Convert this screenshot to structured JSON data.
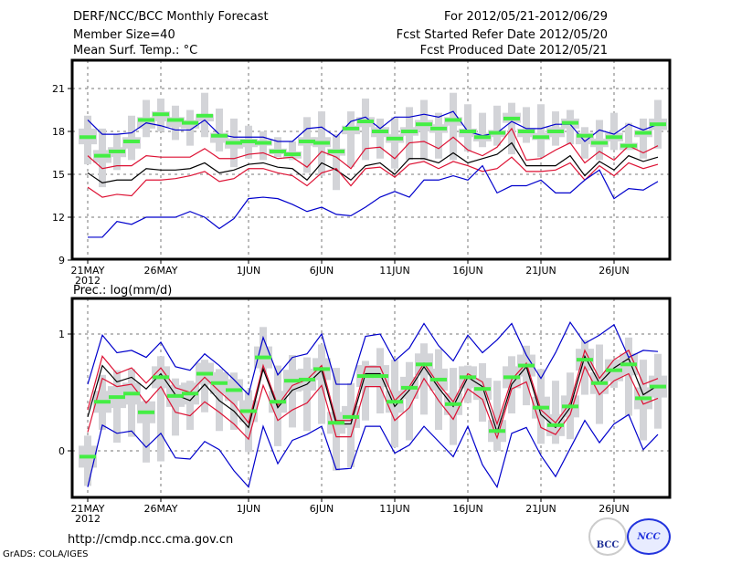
{
  "header": {
    "title": "DERF/NCC/BCC Monthly Forecast",
    "member_size": "Member Size=40",
    "panel1_label": "Mean Surf. Temp.: °C",
    "period": "For 2012/05/21-2012/06/29",
    "refer_date": "Fcst Started Refer Date 2012/05/20",
    "produced_date": "Fcst Produced Date 2012/05/21"
  },
  "footer": {
    "url": "http://cmdp.ncc.cma.gov.cn",
    "credit": "GrADS: COLA/IGES",
    "logo_left": "BCC",
    "logo_right": "NCC"
  },
  "colors": {
    "envelope": "#0000cc",
    "spread": "#dd1133",
    "mean": "#000000",
    "marker": "#44ee44",
    "box": "#d3d4d8"
  },
  "chart_data": [
    {
      "type": "line",
      "title": "Mean Surf. Temp.: °C",
      "xlabel": "",
      "ylabel": "",
      "ylim": [
        9,
        23
      ],
      "yticks": [
        9,
        12,
        15,
        18,
        21
      ],
      "ytick_labels": [
        "9",
        "12",
        "15",
        "18",
        "21"
      ],
      "xticks": [
        0,
        5,
        11,
        16,
        21,
        26,
        31,
        36
      ],
      "xtick_labels": [
        "21MAY",
        "26MAY",
        "1JUN",
        "6JUN",
        "11JUN",
        "16JUN",
        "21JUN",
        "26JUN"
      ],
      "xtick_sublabel": "2012",
      "n_days": 40,
      "grid": true,
      "series": [
        {
          "name": "max",
          "values": [
            18.8,
            17.8,
            17.8,
            17.9,
            18.6,
            18.4,
            18.1,
            18.1,
            18.8,
            17.8,
            17.6,
            17.6,
            17.6,
            17.3,
            17.3,
            18.2,
            18.3,
            17.6,
            18.7,
            19.0,
            18.2,
            19.0,
            19.0,
            19.2,
            19.0,
            19.4,
            18.0,
            17.7,
            17.9,
            18.7,
            18.2,
            18.2,
            18.5,
            18.5,
            17.3,
            18.1,
            17.8,
            18.5,
            18.1,
            18.5
          ]
        },
        {
          "name": "upper",
          "values": [
            16.3,
            15.4,
            15.6,
            15.6,
            16.3,
            16.2,
            16.2,
            16.2,
            16.8,
            16.1,
            16.1,
            16.4,
            16.5,
            16.1,
            16.2,
            15.5,
            16.6,
            16.2,
            15.4,
            16.8,
            16.9,
            16.1,
            17.2,
            17.3,
            16.8,
            17.6,
            16.7,
            16.3,
            16.9,
            18.2,
            16.0,
            16.1,
            16.7,
            17.2,
            15.8,
            16.6,
            16.0,
            17.0,
            16.5,
            17.0
          ]
        },
        {
          "name": "mean",
          "values": [
            15.1,
            14.4,
            14.6,
            14.6,
            15.4,
            15.3,
            15.3,
            15.4,
            15.8,
            15.1,
            15.3,
            15.7,
            15.8,
            15.5,
            15.4,
            14.6,
            15.8,
            15.3,
            14.6,
            15.6,
            15.8,
            15.0,
            16.1,
            16.1,
            15.8,
            16.5,
            15.8,
            16.1,
            16.4,
            17.2,
            15.6,
            15.6,
            15.6,
            16.3,
            14.9,
            15.9,
            15.3,
            16.3,
            15.9,
            16.2
          ]
        },
        {
          "name": "lower",
          "values": [
            14.1,
            13.4,
            13.6,
            13.5,
            14.6,
            14.6,
            14.7,
            14.9,
            15.2,
            14.5,
            14.7,
            15.4,
            15.4,
            15.1,
            14.9,
            14.2,
            15.1,
            15.4,
            14.2,
            15.4,
            15.5,
            14.8,
            15.7,
            15.9,
            15.4,
            15.9,
            15.6,
            15.2,
            15.4,
            16.2,
            15.2,
            15.2,
            15.3,
            15.8,
            14.6,
            15.6,
            14.9,
            15.8,
            15.4,
            15.7
          ]
        },
        {
          "name": "min",
          "values": [
            10.6,
            10.6,
            11.7,
            11.5,
            12.0,
            12.0,
            12.0,
            12.4,
            12.0,
            11.2,
            11.9,
            13.3,
            13.4,
            13.3,
            12.9,
            12.4,
            12.7,
            12.2,
            12.1,
            12.7,
            13.4,
            13.8,
            13.4,
            14.6,
            14.6,
            14.9,
            14.6,
            15.6,
            13.7,
            14.2,
            14.2,
            14.6,
            13.7,
            13.7,
            14.6,
            15.3,
            13.3,
            14.0,
            13.9,
            14.5
          ]
        },
        {
          "name": "ensemble_median_marker",
          "values": [
            17.6,
            16.3,
            16.6,
            17.3,
            18.8,
            19.2,
            18.8,
            18.6,
            19.1,
            17.7,
            17.2,
            17.3,
            17.2,
            16.6,
            16.4,
            17.3,
            17.2,
            16.6,
            18.2,
            18.7,
            18.0,
            17.5,
            18.0,
            18.5,
            18.2,
            18.8,
            18.0,
            17.6,
            17.9,
            18.9,
            18.0,
            17.6,
            18.0,
            18.6,
            17.7,
            17.2,
            17.6,
            17.0,
            17.9,
            18.5
          ]
        }
      ],
      "box_outer": [
        [
          15.7,
          19.1
        ],
        [
          14.1,
          18.2
        ],
        [
          15.3,
          17.8
        ],
        [
          16.0,
          19.1
        ],
        [
          17.6,
          20.2
        ],
        [
          18.0,
          20.3
        ],
        [
          17.4,
          19.8
        ],
        [
          17.0,
          19.5
        ],
        [
          17.6,
          20.7
        ],
        [
          16.6,
          19.6
        ],
        [
          15.5,
          18.9
        ],
        [
          16.1,
          18.4
        ],
        [
          16.0,
          18.0
        ],
        [
          16.2,
          17.6
        ],
        [
          16.0,
          17.3
        ],
        [
          15.1,
          19.0
        ],
        [
          14.9,
          19.4
        ],
        [
          13.9,
          17.8
        ],
        [
          15.5,
          19.4
        ],
        [
          16.0,
          20.3
        ],
        [
          16.1,
          18.9
        ],
        [
          15.4,
          19.0
        ],
        [
          16.0,
          19.7
        ],
        [
          16.0,
          20.2
        ],
        [
          16.1,
          19.3
        ],
        [
          16.0,
          20.7
        ],
        [
          16.6,
          19.9
        ],
        [
          16.9,
          19.3
        ],
        [
          17.0,
          19.8
        ],
        [
          16.4,
          20.0
        ],
        [
          17.2,
          19.7
        ],
        [
          16.2,
          19.9
        ],
        [
          17.0,
          19.4
        ],
        [
          17.1,
          19.5
        ],
        [
          16.1,
          18.3
        ],
        [
          16.0,
          18.8
        ],
        [
          16.7,
          19.3
        ],
        [
          17.0,
          18.6
        ],
        [
          16.1,
          18.9
        ],
        [
          16.8,
          20.2
        ]
      ],
      "box_inner": [
        [
          17.1,
          18.2
        ],
        [
          15.8,
          16.7
        ],
        [
          16.2,
          16.9
        ],
        [
          16.8,
          17.6
        ],
        [
          18.2,
          19.0
        ],
        [
          18.7,
          19.4
        ],
        [
          18.3,
          19.0
        ],
        [
          18.2,
          18.8
        ],
        [
          18.7,
          19.2
        ],
        [
          17.2,
          17.9
        ],
        [
          16.8,
          17.5
        ],
        [
          16.9,
          17.5
        ],
        [
          17.0,
          17.4
        ],
        [
          16.4,
          16.8
        ],
        [
          16.1,
          16.6
        ],
        [
          17.0,
          17.6
        ],
        [
          16.9,
          17.6
        ],
        [
          16.3,
          16.8
        ],
        [
          17.8,
          18.4
        ],
        [
          18.3,
          19.0
        ],
        [
          17.6,
          18.3
        ],
        [
          17.2,
          17.8
        ],
        [
          17.7,
          18.3
        ],
        [
          18.0,
          18.8
        ],
        [
          17.9,
          18.5
        ],
        [
          18.4,
          19.0
        ],
        [
          17.6,
          18.2
        ],
        [
          17.3,
          17.9
        ],
        [
          17.6,
          18.1
        ],
        [
          18.6,
          19.3
        ],
        [
          17.6,
          18.2
        ],
        [
          17.4,
          17.9
        ],
        [
          17.6,
          18.3
        ],
        [
          18.2,
          18.9
        ],
        [
          17.1,
          17.9
        ],
        [
          16.9,
          17.5
        ],
        [
          17.3,
          17.9
        ],
        [
          16.7,
          17.2
        ],
        [
          17.6,
          18.1
        ],
        [
          18.1,
          18.9
        ]
      ]
    },
    {
      "type": "line",
      "title": "Prec.: log(mm/d)",
      "xlabel": "",
      "ylabel": "",
      "ylim": [
        -0.4,
        1.3
      ],
      "yticks": [
        0,
        1
      ],
      "ytick_labels": [
        "0",
        "1"
      ],
      "xticks": [
        0,
        5,
        11,
        16,
        21,
        26,
        31,
        36
      ],
      "xtick_labels": [
        "21MAY",
        "26MAY",
        "1JUN",
        "6JUN",
        "11JUN",
        "16JUN",
        "21JUN",
        "26JUN"
      ],
      "xtick_sublabel": "2012",
      "n_days": 40,
      "grid": true,
      "series": [
        {
          "name": "max",
          "values": [
            0.57,
            0.99,
            0.84,
            0.86,
            0.8,
            0.93,
            0.72,
            0.69,
            0.83,
            0.73,
            0.61,
            0.48,
            0.97,
            0.65,
            0.8,
            0.83,
            1.0,
            0.57,
            0.57,
            0.98,
            1.0,
            0.77,
            0.88,
            1.09,
            0.9,
            0.77,
            0.99,
            0.84,
            0.95,
            1.09,
            0.82,
            0.62,
            0.84,
            1.1,
            0.92,
            0.99,
            1.08,
            0.8,
            0.86,
            0.85
          ]
        },
        {
          "name": "upper",
          "values": [
            0.35,
            0.81,
            0.66,
            0.71,
            0.58,
            0.71,
            0.54,
            0.5,
            0.63,
            0.51,
            0.4,
            0.24,
            0.73,
            0.39,
            0.56,
            0.61,
            0.73,
            0.26,
            0.26,
            0.72,
            0.72,
            0.43,
            0.55,
            0.75,
            0.57,
            0.42,
            0.66,
            0.59,
            0.23,
            0.61,
            0.75,
            0.35,
            0.24,
            0.41,
            0.86,
            0.62,
            0.78,
            0.86,
            0.57,
            0.62
          ]
        },
        {
          "name": "mean",
          "values": [
            0.29,
            0.73,
            0.59,
            0.63,
            0.53,
            0.66,
            0.48,
            0.43,
            0.57,
            0.43,
            0.34,
            0.2,
            0.7,
            0.37,
            0.52,
            0.57,
            0.69,
            0.23,
            0.23,
            0.66,
            0.66,
            0.38,
            0.52,
            0.72,
            0.54,
            0.38,
            0.63,
            0.55,
            0.16,
            0.57,
            0.72,
            0.31,
            0.2,
            0.37,
            0.81,
            0.58,
            0.71,
            0.79,
            0.48,
            0.56
          ]
        },
        {
          "name": "lower",
          "values": [
            0.16,
            0.62,
            0.55,
            0.57,
            0.41,
            0.55,
            0.33,
            0.3,
            0.42,
            0.33,
            0.23,
            0.1,
            0.56,
            0.26,
            0.35,
            0.41,
            0.56,
            0.12,
            0.12,
            0.55,
            0.55,
            0.26,
            0.37,
            0.62,
            0.43,
            0.27,
            0.53,
            0.44,
            0.11,
            0.53,
            0.59,
            0.2,
            0.14,
            0.31,
            0.72,
            0.48,
            0.6,
            0.66,
            0.4,
            0.45
          ]
        },
        {
          "name": "min",
          "values": [
            -0.31,
            0.22,
            0.15,
            0.17,
            0.03,
            0.15,
            -0.06,
            -0.07,
            0.08,
            0.01,
            -0.17,
            -0.31,
            0.21,
            -0.11,
            0.09,
            0.14,
            0.21,
            -0.16,
            -0.15,
            0.21,
            0.21,
            -0.02,
            0.05,
            0.21,
            0.08,
            -0.05,
            0.21,
            -0.12,
            -0.31,
            0.15,
            0.2,
            -0.04,
            -0.22,
            0.02,
            0.26,
            0.07,
            0.23,
            0.31,
            0.01,
            0.14
          ]
        },
        {
          "name": "ensemble_median_marker",
          "values": [
            -0.05,
            0.42,
            0.46,
            0.49,
            0.33,
            0.63,
            0.47,
            0.49,
            0.66,
            0.58,
            0.52,
            0.34,
            0.8,
            0.42,
            0.6,
            0.61,
            0.7,
            0.24,
            0.29,
            0.64,
            0.64,
            0.42,
            0.54,
            0.74,
            0.61,
            0.4,
            0.63,
            0.53,
            0.17,
            0.63,
            0.73,
            0.37,
            0.22,
            0.38,
            0.78,
            0.58,
            0.69,
            0.74,
            0.45,
            0.55
          ]
        }
      ],
      "box_outer": [
        [
          -0.3,
          0.13
        ],
        [
          0.18,
          0.65
        ],
        [
          0.07,
          0.69
        ],
        [
          0.12,
          0.7
        ],
        [
          -0.1,
          0.43
        ],
        [
          -0.09,
          0.81
        ],
        [
          0.13,
          0.62
        ],
        [
          0.18,
          0.6
        ],
        [
          0.33,
          0.78
        ],
        [
          0.17,
          0.7
        ],
        [
          0.18,
          0.67
        ],
        [
          -0.01,
          0.52
        ],
        [
          0.67,
          1.06
        ],
        [
          0.04,
          0.73
        ],
        [
          0.2,
          0.82
        ],
        [
          0.17,
          0.8
        ],
        [
          0.23,
          0.91
        ],
        [
          -0.17,
          0.71
        ],
        [
          -0.14,
          0.58
        ],
        [
          0.26,
          0.77
        ],
        [
          0.32,
          0.88
        ],
        [
          0.03,
          0.78
        ],
        [
          0.09,
          0.76
        ],
        [
          0.31,
          0.92
        ],
        [
          0.18,
          0.87
        ],
        [
          0.05,
          0.71
        ],
        [
          0.41,
          0.73
        ],
        [
          0.25,
          0.75
        ],
        [
          0.0,
          0.6
        ],
        [
          0.32,
          0.81
        ],
        [
          0.39,
          0.9
        ],
        [
          0.06,
          0.7
        ],
        [
          0.06,
          0.6
        ],
        [
          0.1,
          0.67
        ],
        [
          0.48,
          0.95
        ],
        [
          0.23,
          0.91
        ],
        [
          0.54,
          0.75
        ],
        [
          0.3,
          0.97
        ],
        [
          0.09,
          0.78
        ],
        [
          0.19,
          0.83
        ]
      ]
    }
  ]
}
